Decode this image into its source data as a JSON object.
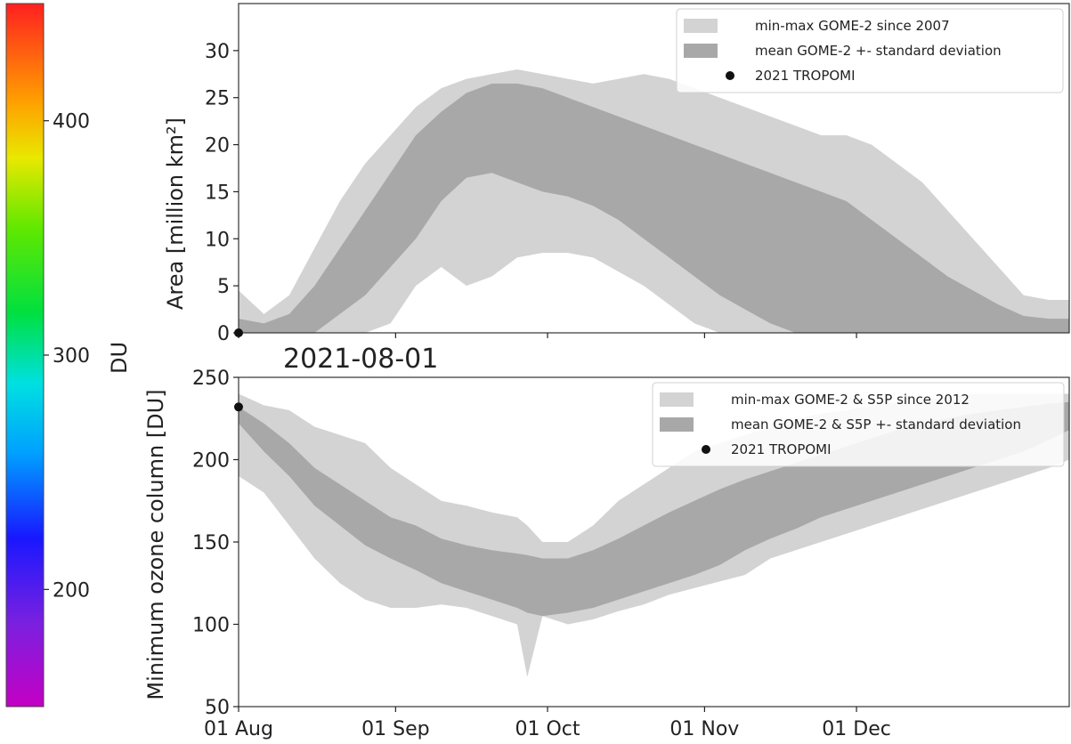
{
  "date_label": "2021-08-01",
  "colorbar": {
    "label": "DU",
    "ticks": [
      200,
      300,
      400
    ],
    "range": [
      150,
      450
    ],
    "colormap": "rainbow"
  },
  "x_axis": {
    "range_days": [
      0,
      164
    ],
    "ticks": [
      {
        "day": 0,
        "label": "01 Aug"
      },
      {
        "day": 31,
        "label": "01 Sep"
      },
      {
        "day": 61,
        "label": "01 Oct"
      },
      {
        "day": 92,
        "label": "01 Nov"
      },
      {
        "day": 122,
        "label": "01 Dec"
      }
    ]
  },
  "colors": {
    "minmax_band": "#d3d3d3",
    "std_band": "#a8a8a8",
    "tropomi_point": "#111111"
  },
  "chart_data": [
    {
      "type": "area",
      "title": "",
      "ylabel": "Area [million km²]",
      "ylim": [
        0,
        35
      ],
      "yticks": [
        0,
        5,
        10,
        15,
        20,
        25,
        30
      ],
      "grid": false,
      "legend_position": "top-right",
      "legend": [
        {
          "label": "min-max GOME-2 since 2007",
          "kind": "band-light"
        },
        {
          "label": "mean GOME-2  +- standard deviation",
          "kind": "band-dark"
        },
        {
          "label": "2021  TROPOMI",
          "kind": "point"
        }
      ],
      "day": [
        0,
        5,
        10,
        15,
        20,
        25,
        30,
        35,
        40,
        45,
        50,
        55,
        60,
        65,
        70,
        75,
        80,
        85,
        90,
        95,
        100,
        105,
        110,
        115,
        120,
        125,
        130,
        135,
        140,
        145,
        150,
        155,
        160,
        164
      ],
      "minmax_upper": [
        4.5,
        2,
        4,
        9,
        14,
        18,
        21,
        24,
        26,
        27,
        27.5,
        28,
        27.5,
        27,
        26.5,
        27,
        27.5,
        27,
        26,
        25,
        24,
        23,
        22,
        21,
        21,
        20,
        18,
        16,
        13,
        10,
        7,
        4,
        3.5,
        3.5
      ],
      "std_upper": [
        1.5,
        1,
        2,
        5,
        9,
        13,
        17,
        21,
        23.5,
        25.5,
        26.5,
        26.5,
        26,
        25,
        24,
        23,
        22,
        21,
        20,
        19,
        18,
        17,
        16,
        15,
        14,
        12,
        10,
        8,
        6,
        4.5,
        3,
        1.8,
        1.5,
        1.5
      ],
      "std_lower": [
        0,
        0,
        0,
        0,
        2,
        4,
        7,
        10,
        14,
        16.5,
        17,
        16,
        15,
        14.5,
        13.5,
        12,
        10,
        8,
        6,
        4,
        2.5,
        1,
        0,
        0,
        0,
        0,
        0,
        0,
        0,
        0,
        0,
        0,
        0,
        0
      ],
      "minmax_lower": [
        0,
        0,
        0,
        0,
        0,
        0,
        1,
        5,
        7,
        5,
        6,
        8,
        8.5,
        8.5,
        8,
        6.5,
        5,
        3,
        1,
        0,
        0,
        0,
        0,
        0,
        0,
        0,
        0,
        0,
        0,
        0,
        0,
        0,
        0,
        0
      ],
      "series": [
        {
          "name": "2021  TROPOMI",
          "x": [
            0
          ],
          "y": [
            0
          ]
        }
      ]
    },
    {
      "type": "area",
      "title": "",
      "ylabel": "Minimum ozone column [DU]",
      "ylim": [
        50,
        250
      ],
      "yticks": [
        50,
        100,
        150,
        200,
        250
      ],
      "grid": false,
      "legend_position": "top-right",
      "legend": [
        {
          "label": "min-max GOME-2 & S5P since 2012",
          "kind": "band-light"
        },
        {
          "label": "mean GOME-2 & S5P  +- standard deviation",
          "kind": "band-dark"
        },
        {
          "label": "2021  TROPOMI",
          "kind": "point"
        }
      ],
      "day": [
        0,
        5,
        10,
        15,
        20,
        25,
        30,
        35,
        40,
        45,
        50,
        55,
        57,
        60,
        65,
        70,
        75,
        80,
        85,
        90,
        95,
        100,
        105,
        110,
        115,
        120,
        125,
        130,
        135,
        140,
        145,
        150,
        155,
        160,
        164
      ],
      "minmax_upper": [
        240,
        233,
        230,
        220,
        215,
        210,
        195,
        185,
        175,
        172,
        168,
        165,
        160,
        150,
        150,
        160,
        175,
        185,
        195,
        205,
        210,
        215,
        220,
        225,
        228,
        230,
        233,
        235,
        237,
        238,
        240,
        240,
        240,
        240,
        240
      ],
      "std_upper": [
        232,
        222,
        210,
        195,
        185,
        175,
        165,
        160,
        152,
        148,
        145,
        143,
        142,
        140,
        140,
        145,
        152,
        160,
        168,
        175,
        182,
        188,
        193,
        198,
        203,
        208,
        213,
        218,
        222,
        225,
        228,
        230,
        232,
        234,
        235
      ],
      "std_lower": [
        222,
        205,
        190,
        172,
        160,
        148,
        140,
        133,
        125,
        120,
        115,
        110,
        107,
        105,
        107,
        110,
        115,
        120,
        125,
        130,
        136,
        145,
        152,
        158,
        165,
        170,
        175,
        180,
        185,
        190,
        195,
        200,
        205,
        212,
        218
      ],
      "minmax_lower": [
        190,
        180,
        160,
        140,
        125,
        115,
        110,
        110,
        112,
        110,
        105,
        100,
        68,
        105,
        100,
        103,
        108,
        112,
        118,
        122,
        126,
        130,
        140,
        145,
        150,
        155,
        160,
        165,
        170,
        175,
        180,
        185,
        190,
        195,
        200
      ],
      "series": [
        {
          "name": "2021  TROPOMI",
          "x": [
            0
          ],
          "y": [
            232
          ]
        }
      ]
    }
  ]
}
